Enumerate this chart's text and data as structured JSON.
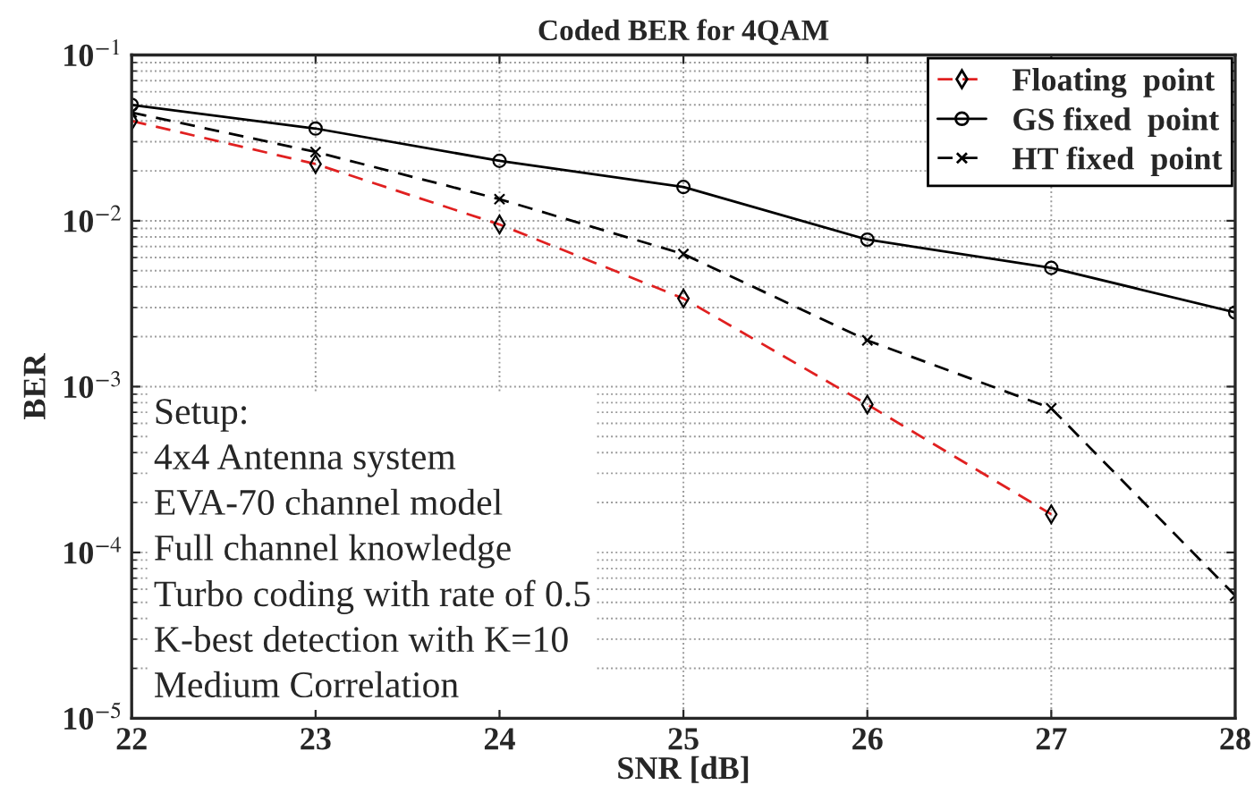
{
  "chart_data": {
    "type": "line",
    "title": "Coded BER for 4QAM",
    "xlabel": "SNR [dB]",
    "ylabel": "BER",
    "x": [
      22,
      23,
      24,
      25,
      26,
      27,
      28
    ],
    "series": [
      {
        "name": "Floating  point",
        "color": "#e02020",
        "marker": "diamond",
        "line_style": "dashed",
        "values": [
          0.04,
          0.022,
          0.0095,
          0.0034,
          0.00078,
          0.00017,
          null
        ]
      },
      {
        "name": "GS fixed  point",
        "color": "#000000",
        "marker": "circle",
        "line_style": "solid",
        "values": [
          0.05,
          0.036,
          0.023,
          0.016,
          0.0077,
          0.0052,
          0.0028
        ]
      },
      {
        "name": "HT fixed  point",
        "color": "#000000",
        "marker": "cross",
        "line_style": "dashed",
        "values": [
          0.045,
          0.026,
          0.0135,
          0.0063,
          0.0019,
          0.00074,
          5.5e-05
        ]
      }
    ],
    "log": "y",
    "xlim": [
      22,
      28
    ],
    "xticks": [
      22,
      23,
      24,
      25,
      26,
      27,
      28
    ],
    "ylim": [
      1e-05,
      0.1
    ],
    "yticks": [
      {
        "value": 1e-05,
        "label": "10$^{−5}$"
      },
      {
        "value": 0.0001,
        "label": "10$^{−4}$"
      },
      {
        "value": 0.001,
        "label": "10$^{−3}$"
      },
      {
        "value": 0.01,
        "label": "10$^{−2}$"
      },
      {
        "value": 0.1,
        "label": "10$^{−1}$"
      }
    ],
    "grid": true,
    "legend": "top right",
    "annotations": [
      "Setup:\n4x4 Antenna system\nEVA-70 channel model\nFull channel knowledge\nTurbo coding with rate of 0.5\nK-best detection with K=10\nMedium Correlation"
    ]
  }
}
